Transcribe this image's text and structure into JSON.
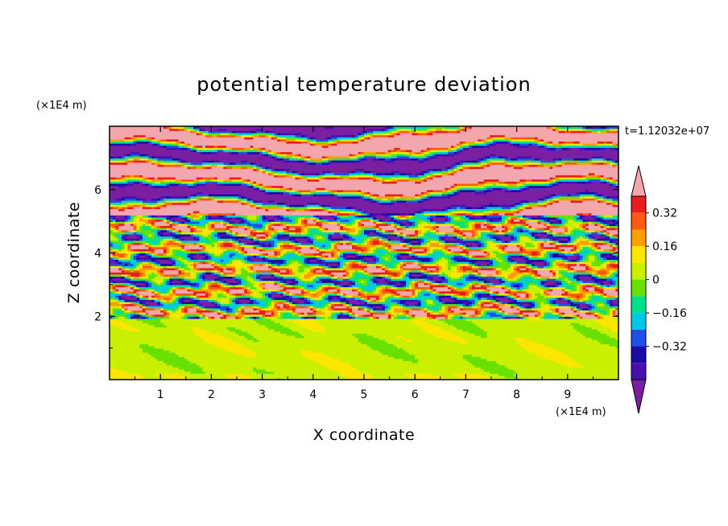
{
  "chart_data": {
    "type": "heatmap",
    "title": "potential temperature deviation",
    "xlabel": "X coordinate",
    "ylabel": "Z coordinate",
    "x_unit": "(×1E4 m)",
    "y_unit": "(×1E4 m)",
    "time_label": "t=1.12032e+07",
    "xlim": [
      0,
      10
    ],
    "ylim": [
      0,
      8
    ],
    "x_ticks": [
      "1",
      "2",
      "3",
      "4",
      "5",
      "6",
      "7",
      "8",
      "9"
    ],
    "y_ticks": [
      "2",
      "4",
      "6"
    ],
    "colorbar": {
      "levels": [
        -0.48,
        -0.4,
        -0.32,
        -0.24,
        -0.16,
        -0.08,
        0,
        0.08,
        0.16,
        0.24,
        0.32,
        0.4,
        0.48
      ],
      "colors": [
        "#7a1fa2",
        "#4a0fb0",
        "#1a0aa8",
        "#1f4fe6",
        "#00c8e8",
        "#00e08a",
        "#68e000",
        "#c8f000",
        "#ffe600",
        "#ffa000",
        "#ff5a10",
        "#e81e1e",
        "#f3a6ad"
      ],
      "tick_labels": [
        "0.32",
        "0.16",
        "0",
        "-0.16",
        "-0.32"
      ],
      "extend": "both"
    },
    "field_layers": [
      {
        "z_range": [
          0,
          1.95
        ],
        "pattern": "mostly light-green (0.0 to 0.08) with mint-green patches (-0.08 to 0)"
      },
      {
        "z_range": [
          1.95,
          5.2
        ],
        "pattern": "finely banded, all colour levels from purple to pink"
      },
      {
        "z_range": [
          5.2,
          8.0
        ],
        "pattern": "alternating broad bands of pink (> 0.48) and purple (< -0.48)"
      }
    ]
  }
}
